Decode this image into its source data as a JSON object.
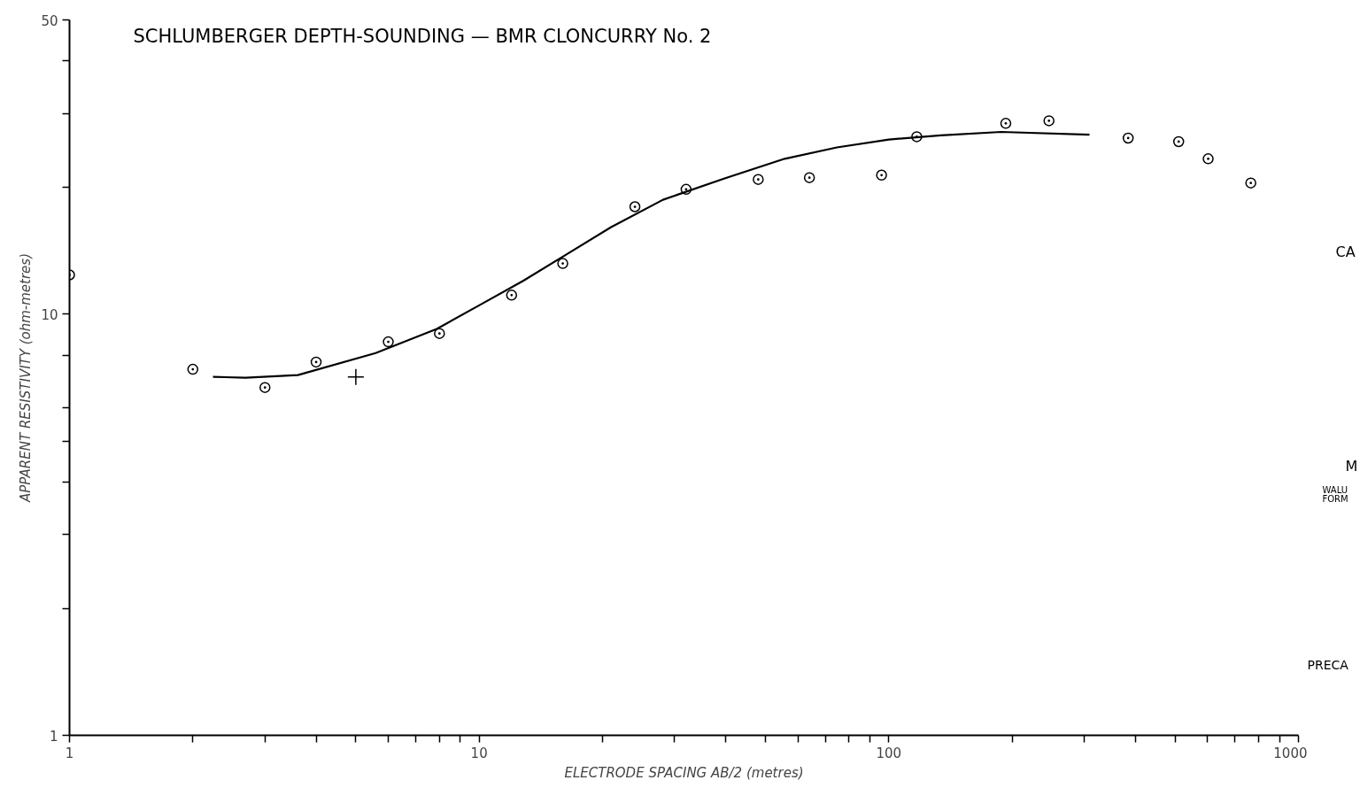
{
  "chart_data": {
    "type": "scatter",
    "title": "SCHLUMBERGER DEPTH-SOUNDING — BMR CLONCURRY No. 2",
    "xlabel": "ELECTRODE SPACING AB/2 (metres)",
    "ylabel": "APPARENT RESISTIVITY (ohm-metres)",
    "log": "xy",
    "grid": false,
    "xlim": [
      1,
      1000
    ],
    "ylim": [
      1,
      50
    ],
    "xticks": [
      1,
      {
        "value": 2,
        "label": null
      },
      {
        "value": 3,
        "label": null
      },
      {
        "value": 4,
        "label": null
      },
      {
        "value": 5,
        "label": null
      },
      {
        "value": 6,
        "label": null
      },
      {
        "value": 7,
        "label": null
      },
      {
        "value": 8,
        "label": null
      },
      {
        "value": 9,
        "label": null
      },
      10,
      {
        "value": 20,
        "label": null
      },
      {
        "value": 30,
        "label": null
      },
      {
        "value": 40,
        "label": null
      },
      {
        "value": 50,
        "label": null
      },
      {
        "value": 60,
        "label": null
      },
      {
        "value": 70,
        "label": null
      },
      {
        "value": 80,
        "label": null
      },
      {
        "value": 90,
        "label": null
      },
      100,
      {
        "value": 200,
        "label": null
      },
      {
        "value": 300,
        "label": null
      },
      {
        "value": 400,
        "label": null
      },
      {
        "value": 500,
        "label": null
      },
      {
        "value": 600,
        "label": null
      },
      {
        "value": 700,
        "label": null
      },
      {
        "value": 800,
        "label": null
      },
      {
        "value": 900,
        "label": null
      },
      1000
    ],
    "yticks": [
      1,
      {
        "value": 2,
        "label": null
      },
      {
        "value": 3,
        "label": null
      },
      {
        "value": 4,
        "label": null
      },
      {
        "value": 5,
        "label": null
      },
      {
        "value": 6,
        "label": null
      },
      {
        "value": 8,
        "label": null
      },
      10,
      {
        "value": 20,
        "label": null
      },
      {
        "value": 30,
        "label": null
      },
      {
        "value": 40,
        "label": null
      },
      50
    ],
    "annotations": [
      "CA",
      "M",
      "WALU\nFORM",
      "PRECA"
    ],
    "series": [
      {
        "type": "scatter",
        "marker": "circle",
        "color": "#000000",
        "x": [
          1,
          2,
          3,
          4,
          6,
          8,
          12,
          16,
          24,
          32,
          48,
          64,
          96,
          117,
          193,
          246,
          384,
          510,
          602,
          765
        ],
        "values": [
          12.4,
          7.4,
          6.7,
          7.7,
          8.6,
          9.0,
          11.1,
          13.2,
          18.0,
          19.8,
          20.9,
          21.1,
          21.4,
          26.4,
          28.4,
          28.8,
          26.2,
          25.7,
          23.4,
          20.5
        ]
      },
      {
        "type": "scatter",
        "marker": "cross",
        "color": "#000000",
        "x": [
          5
        ],
        "values": [
          7.1
        ]
      },
      {
        "type": "line",
        "color": "#000000",
        "x": [
          2.24,
          2.69,
          3.61,
          5.59,
          7.88,
          10,
          12.8,
          16.4,
          21.0,
          28.1,
          39.6,
          55.7,
          74.7,
          100,
          134,
          188,
          309
        ],
        "values": [
          7.1,
          7.07,
          7.17,
          8.09,
          9.23,
          10.5,
          12.0,
          13.9,
          16.1,
          18.7,
          21.0,
          23.4,
          24.9,
          26.0,
          26.6,
          27.1,
          26.7
        ]
      }
    ]
  }
}
